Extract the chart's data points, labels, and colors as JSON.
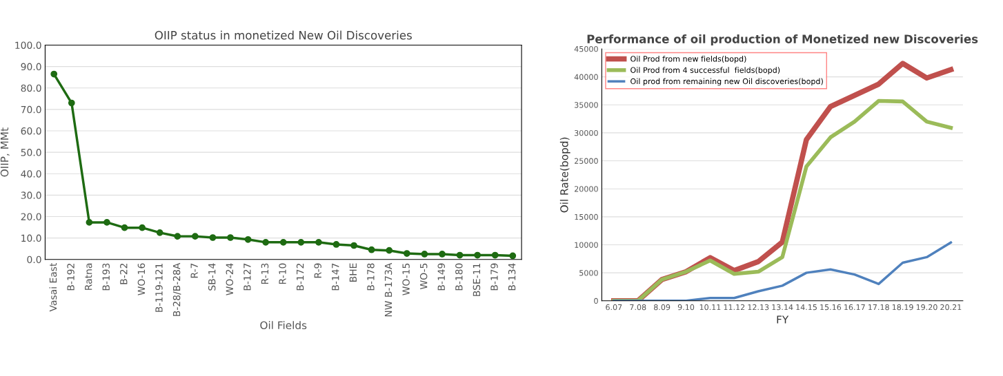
{
  "chart_data": [
    {
      "type": "line",
      "title": "OIIP status in monetized New Oil Discoveries",
      "xlabel": "Oil Fields",
      "ylabel": "OIIP, MMt",
      "categories": [
        "Vasai East",
        "B-192",
        "Ratna",
        "B-193",
        "B-22",
        "WO-16",
        "B-119-121",
        "B-28/B-28A",
        "R-7",
        "SB-14",
        "WO-24",
        "B-127",
        "R-13",
        "R-10",
        "B-172",
        "R-9",
        "B-147",
        "BHE",
        "B-178",
        "NW B-173A",
        "WO-15",
        "WO-5",
        "B-149",
        "B-180",
        "BSE-11",
        "B-179",
        "B-134"
      ],
      "series": [
        {
          "color": "#1e6b12",
          "values": [
            86.5,
            73,
            17.3,
            17.3,
            14.8,
            14.8,
            12.5,
            10.8,
            10.8,
            10.2,
            10.2,
            9.3,
            8,
            8,
            8,
            8,
            7,
            6.5,
            4.5,
            4.2,
            2.8,
            2.5,
            2.5,
            2,
            2,
            2,
            1.7
          ]
        }
      ],
      "ylim": [
        0,
        100
      ],
      "yticks": [
        {
          "value": 0,
          "label": "0.0"
        },
        {
          "value": 10,
          "label": "10.0"
        },
        {
          "value": 20,
          "label": "20.0"
        },
        {
          "value": 30,
          "label": "30.0"
        },
        {
          "value": 40,
          "label": "40.0"
        },
        {
          "value": 50,
          "label": "50.0"
        },
        {
          "value": 60,
          "label": "60.0"
        },
        {
          "value": 70,
          "label": "70.0"
        },
        {
          "value": 80,
          "label": "80.0"
        },
        {
          "value": 90,
          "label": "90.0"
        },
        {
          "value": 100,
          "label": "100.0"
        }
      ],
      "grid": "y",
      "marker": "circle",
      "line_style": "solid"
    },
    {
      "type": "line",
      "title": "Performance of oil production of Monetized new Discoveries",
      "xlabel": "FY",
      "ylabel": "Oil Rate(bopd)",
      "categories": [
        "6.07",
        "7.08",
        "8.09",
        "9.10",
        "10.11",
        "11.12",
        "12.13",
        "13.14",
        "14.15",
        "15.16",
        "16.17",
        "17.18",
        "18.19",
        "19.20",
        "20.21"
      ],
      "series": [
        {
          "name": "Oil Prod from new fields(bopd)",
          "color": "#c0504d",
          "values": [
            0,
            0,
            3800,
            5200,
            7700,
            5400,
            7000,
            10500,
            28800,
            34700,
            36700,
            38700,
            42400,
            39800,
            41300
          ]
        },
        {
          "name": "Oil Prod from 4 successful  fields(bopd)",
          "color": "#9bbb59",
          "values": [
            0,
            0,
            3800,
            5200,
            7200,
            4800,
            5200,
            7800,
            24000,
            29200,
            32000,
            35700,
            35600,
            32000,
            30900
          ]
        },
        {
          "name": "Oil prod from remaining new Oil discoveries(bopd)",
          "color": "#4f81bd",
          "values": [
            0,
            0,
            0,
            0,
            500,
            500,
            1700,
            2700,
            5000,
            5600,
            4700,
            3000,
            6800,
            7800,
            10400
          ]
        }
      ],
      "ylim": [
        0,
        45000
      ],
      "yticks": [
        0,
        5000,
        10000,
        15000,
        20000,
        25000,
        30000,
        35000,
        40000,
        45000
      ],
      "grid": "y",
      "legend": "top left",
      "marker": "none",
      "line_style": "solid"
    }
  ]
}
